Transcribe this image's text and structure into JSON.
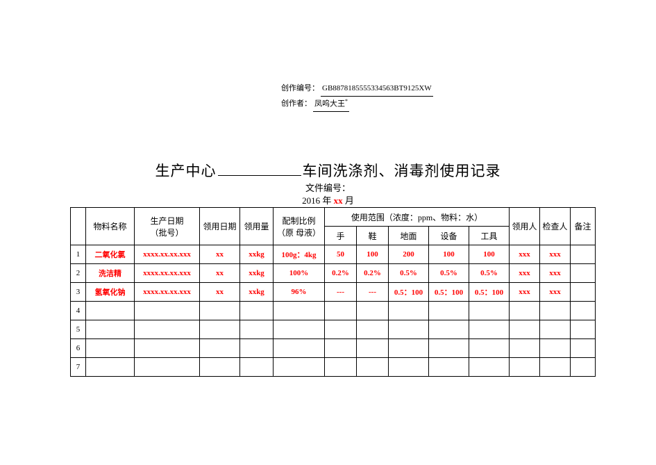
{
  "meta": {
    "label_id": "创作编号：",
    "id": "GB8878185555334563BT9125XW",
    "label_author": "创作者：",
    "author": "凤呜大王",
    "author_suffix": "*"
  },
  "title": {
    "prefix": "生产中心",
    "suffix": "车间洗涤剂、消毒剂使用记录"
  },
  "docnum_label": "文件编号：",
  "dateline": {
    "year_pre": "2016 年 ",
    "month_xx": "xx",
    "month_suf": " 月"
  },
  "headers": {
    "name": "物料名称",
    "batch_l1": "生产日期",
    "batch_l2": "（批号）",
    "recv_date": "领用日期",
    "amount": "领用量",
    "ratio_l1": "配制比例",
    "ratio_l2": "（原 母液）",
    "scope": "使用范围（浓度：ppm、物料：水）",
    "hand": "手",
    "shoe": "鞋",
    "floor": "地面",
    "equip": "设备",
    "tool": "工具",
    "receiver": "领用人",
    "checker": "检查人",
    "note": "备注"
  },
  "rows": [
    {
      "idx": "1",
      "name": "二氧化氯",
      "batch": "xxxx.xx.xx.xxx",
      "date": "xx",
      "amt": "xxkg",
      "ratio": "100g：4kg",
      "hand": "50",
      "shoe": "100",
      "floor": "200",
      "equip": "100",
      "tool": "100",
      "recv": "xxx",
      "chk": "xxx",
      "note": ""
    },
    {
      "idx": "2",
      "name": "洗洁精",
      "batch": "xxxx.xx.xx.xxx",
      "date": "xx",
      "amt": "xxkg",
      "ratio": "100%",
      "hand": "0.2%",
      "shoe": "0.2%",
      "floor": "0.5%",
      "equip": "0.5%",
      "tool": "0.5%",
      "recv": "xxx",
      "chk": "xxx",
      "note": ""
    },
    {
      "idx": "3",
      "name": "氢氧化钠",
      "batch": "xxxx.xx.xx.xxx",
      "date": "xx",
      "amt": "xxkg",
      "ratio": "96%",
      "hand": "---",
      "shoe": "---",
      "floor": "0.5：100",
      "equip": "0.5：100",
      "tool": "0.5：100",
      "recv": "xxx",
      "chk": "xxx",
      "note": ""
    },
    {
      "idx": "4",
      "name": "",
      "batch": "",
      "date": "",
      "amt": "",
      "ratio": "",
      "hand": "",
      "shoe": "",
      "floor": "",
      "equip": "",
      "tool": "",
      "recv": "",
      "chk": "",
      "note": ""
    },
    {
      "idx": "5",
      "name": "",
      "batch": "",
      "date": "",
      "amt": "",
      "ratio": "",
      "hand": "",
      "shoe": "",
      "floor": "",
      "equip": "",
      "tool": "",
      "recv": "",
      "chk": "",
      "note": ""
    },
    {
      "idx": "6",
      "name": "",
      "batch": "",
      "date": "",
      "amt": "",
      "ratio": "",
      "hand": "",
      "shoe": "",
      "floor": "",
      "equip": "",
      "tool": "",
      "recv": "",
      "chk": "",
      "note": ""
    },
    {
      "idx": "7",
      "name": "",
      "batch": "",
      "date": "",
      "amt": "",
      "ratio": "",
      "hand": "",
      "shoe": "",
      "floor": "",
      "equip": "",
      "tool": "",
      "recv": "",
      "chk": "",
      "note": ""
    }
  ],
  "style": {
    "red": "#ff0000",
    "black": "#000000",
    "background": "#ffffff",
    "border": "#000000"
  }
}
